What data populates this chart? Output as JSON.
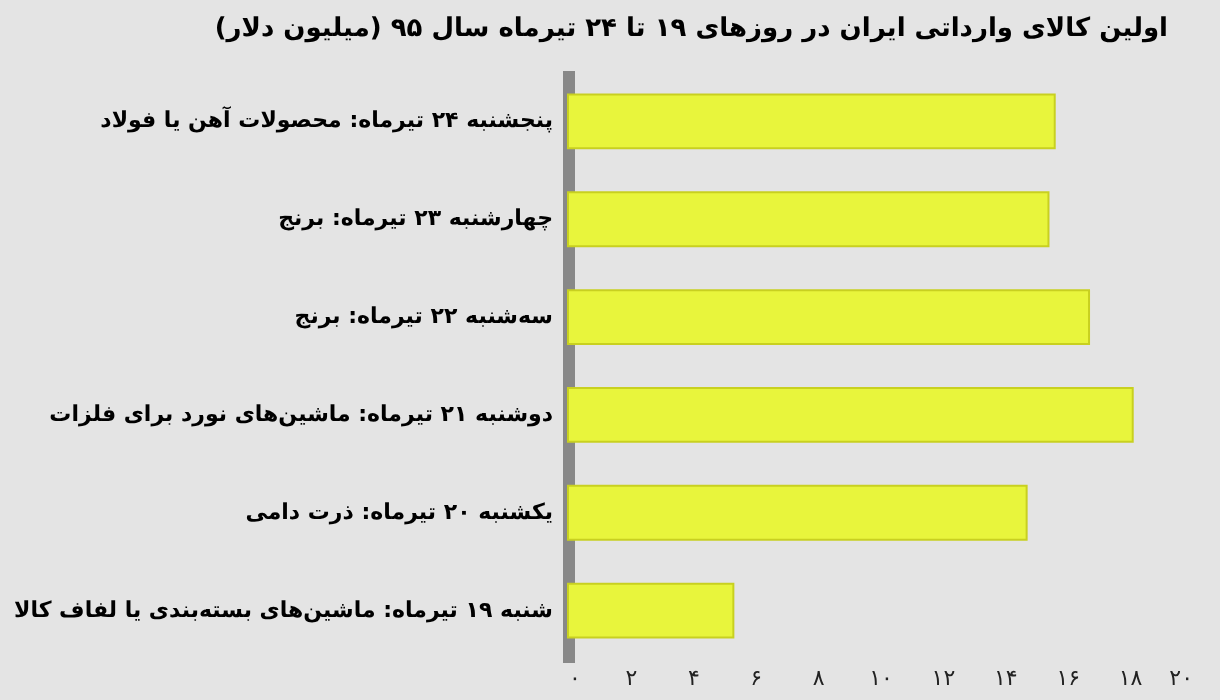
{
  "chart_data": {
    "type": "bar",
    "orientation": "horizontal",
    "title": "اولین کالای وارداتی ایران در روزهای ۱۹ تا ۲۴ تیرماه سال ۹۵ (میلیون دلار)",
    "categories": [
      "پنجشنبه ۲۴ تیرماه: محصولات آهن یا فولاد",
      "چهارشنبه ۲۳ تیرماه: برنج",
      "سه‌شنبه ۲۲ تیرماه: برنج",
      "دوشنبه ۲۱ تیرماه: ماشین‌های نورد برای فلزات",
      "یکشنبه ۲۰ تیرماه: ذرت دامی",
      "شنبه ۱۹ تیرماه: ماشین‌های بسته‌بندی یا لفاف کالا"
    ],
    "values": [
      15.6,
      15.4,
      16.7,
      18.1,
      14.7,
      5.3
    ],
    "color": "#e8f53c",
    "xlim": [
      0,
      20
    ],
    "xticks": [
      {
        "value": 0,
        "label": "۰"
      },
      {
        "value": 2,
        "label": "۲"
      },
      {
        "value": 4,
        "label": "۴"
      },
      {
        "value": 6,
        "label": "۶"
      },
      {
        "value": 8,
        "label": "۸"
      },
      {
        "value": 10,
        "label": "۱۰"
      },
      {
        "value": 12,
        "label": "۱۲"
      },
      {
        "value": 14,
        "label": "۱۴"
      },
      {
        "value": 16,
        "label": "۱۶"
      },
      {
        "value": 18,
        "label": "۱۸"
      },
      {
        "value": 20,
        "label": "۲۰"
      }
    ],
    "grid": false
  }
}
